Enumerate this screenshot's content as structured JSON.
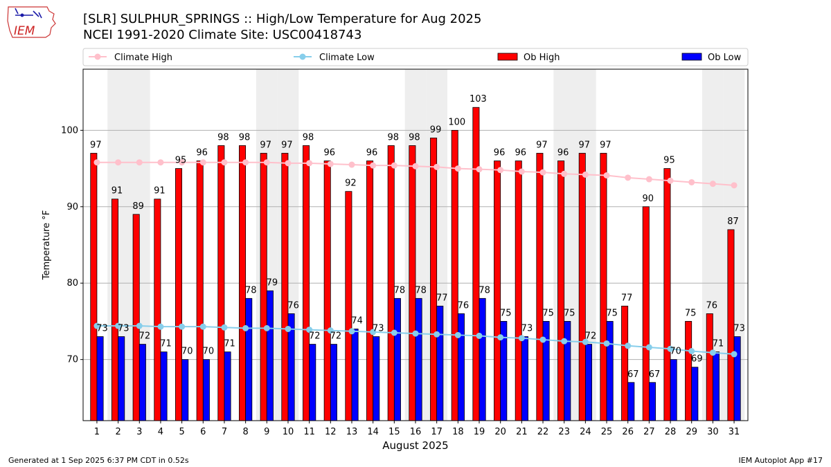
{
  "header": {
    "title_line1": "[SLR] SULPHUR_SPRINGS :: High/Low Temperature for Aug 2025",
    "title_line2": "NCEI 1991-2020 Climate Site: USC00418743"
  },
  "logo": {
    "text": "IEM",
    "icon": "iowa-state-outline-icon"
  },
  "footer": {
    "generated": "Generated at 1 Sep 2025 6:37 PM CDT in 0.52s",
    "app": "IEM Autoplot App #17"
  },
  "colors": {
    "ob_high": "#ff0000",
    "ob_low": "#0000ff",
    "climate_high": "#ffc0cb",
    "climate_low": "#87ceeb",
    "weekend_shade": "#eeeeee",
    "grid": "#b0b0b0"
  },
  "chart_data": {
    "type": "bar",
    "xlabel": "August 2025",
    "ylabel": "Temperature °F",
    "ylim": [
      62,
      108
    ],
    "yticks": [
      70,
      80,
      90,
      100
    ],
    "grid": "horizontal",
    "legend_position": "top",
    "categories": [
      "1",
      "2",
      "3",
      "4",
      "5",
      "6",
      "7",
      "8",
      "9",
      "10",
      "11",
      "12",
      "13",
      "14",
      "15",
      "16",
      "17",
      "18",
      "19",
      "20",
      "21",
      "22",
      "23",
      "24",
      "25",
      "26",
      "27",
      "28",
      "29",
      "30",
      "31"
    ],
    "weekend_days": [
      2,
      3,
      9,
      10,
      16,
      17,
      23,
      24,
      30,
      31
    ],
    "bar_series": [
      {
        "name": "Ob High",
        "values": [
          97,
          91,
          89,
          91,
          95,
          96,
          98,
          98,
          97,
          97,
          98,
          96,
          92,
          96,
          98,
          98,
          99,
          100,
          103,
          96,
          96,
          97,
          96,
          97,
          97,
          77,
          90,
          95,
          75,
          76,
          87
        ]
      },
      {
        "name": "Ob Low",
        "values": [
          73,
          73,
          72,
          71,
          70,
          70,
          71,
          78,
          79,
          76,
          72,
          72,
          74,
          73,
          78,
          78,
          77,
          76,
          78,
          75,
          73,
          75,
          75,
          72,
          75,
          67,
          67,
          70,
          69,
          71,
          73
        ]
      }
    ],
    "line_series": [
      {
        "name": "Climate High",
        "values": [
          95.8,
          95.8,
          95.8,
          95.8,
          95.8,
          95.8,
          95.8,
          95.8,
          95.8,
          95.7,
          95.7,
          95.6,
          95.5,
          95.4,
          95.4,
          95.3,
          95.2,
          95.0,
          94.9,
          94.8,
          94.6,
          94.5,
          94.3,
          94.2,
          94.1,
          93.8,
          93.6,
          93.4,
          93.2,
          93.0,
          92.8
        ]
      },
      {
        "name": "Climate Low",
        "values": [
          74.4,
          74.4,
          74.4,
          74.3,
          74.3,
          74.3,
          74.2,
          74.1,
          74.1,
          74.0,
          73.9,
          73.8,
          73.7,
          73.6,
          73.5,
          73.4,
          73.3,
          73.2,
          73.1,
          72.9,
          72.8,
          72.6,
          72.4,
          72.3,
          72.1,
          71.8,
          71.6,
          71.4,
          71.1,
          70.9,
          70.7
        ]
      }
    ]
  }
}
